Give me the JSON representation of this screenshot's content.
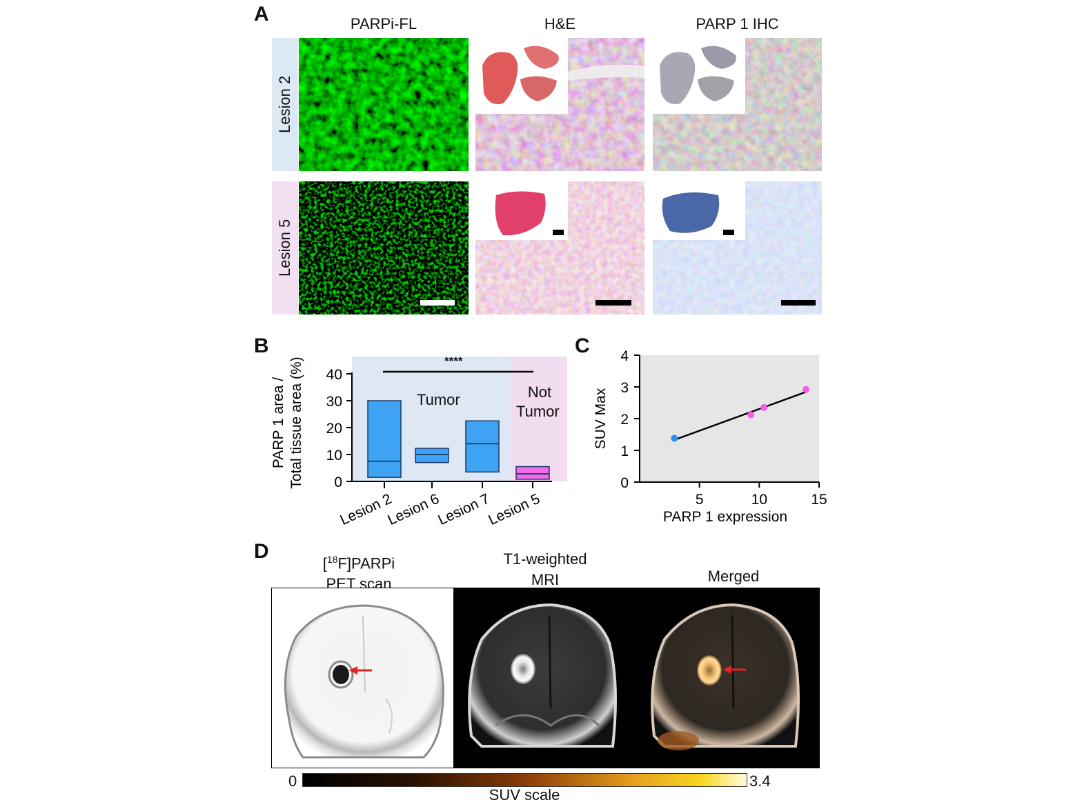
{
  "panelA": {
    "letter": "A",
    "columns": [
      "PARPi-FL",
      "H&E",
      "PARP 1 IHC"
    ],
    "rows": [
      "Lesion 2",
      "Lesion 5"
    ]
  },
  "panelB": {
    "letter": "B",
    "region_labels": {
      "tumor": "Tumor",
      "not_tumor_1": "Not",
      "not_tumor_2": "Tumor"
    },
    "significance": "****"
  },
  "panelC": {
    "letter": "C"
  },
  "panelD": {
    "letter": "D",
    "pet_title_sup": "18",
    "pet_title_pre": "[",
    "pet_title_post": "F]PARPi",
    "pet_title_line2": "PET scan",
    "mri_title_line1": "T1-weighted",
    "mri_title_line2": "MRI",
    "merged_title": "Merged",
    "colorbar": {
      "min_label": "0",
      "max_label": "3.4",
      "label": "SUV scale"
    }
  },
  "chart_data": [
    {
      "type": "box",
      "ylabel": [
        "PARP 1 area /",
        "Total tissue area (%)"
      ],
      "ylim": [
        0,
        40
      ],
      "yticks": [
        0,
        10,
        20,
        30,
        40
      ],
      "categories": [
        "Lesion 2",
        "Lesion 6",
        "Lesion 7",
        "Lesion 5"
      ],
      "boxes": [
        {
          "low": 1.5,
          "median": 7.5,
          "high": 30,
          "group": "Tumor",
          "color": "#3ea3f2"
        },
        {
          "low": 7,
          "median": 10,
          "high": 12.3,
          "group": "Tumor",
          "color": "#3ea3f2"
        },
        {
          "low": 3.5,
          "median": 14,
          "high": 22.5,
          "group": "Tumor",
          "color": "#3ea3f2"
        },
        {
          "low": 0.8,
          "median": 2.8,
          "high": 5.5,
          "group": "Not Tumor",
          "color": "#f06be8"
        }
      ],
      "region_colors": {
        "tumor": "#dde8f4",
        "not_tumor": "#f1dcf0"
      }
    },
    {
      "type": "scatter",
      "xlabel": "PARP 1 expression",
      "ylabel": "SUV Max",
      "xlim": [
        0,
        15
      ],
      "ylim": [
        0,
        4
      ],
      "xticks": [
        5,
        10,
        15
      ],
      "yticks": [
        0,
        1,
        2,
        3,
        4
      ],
      "grid": false,
      "background": "#e6e6e6",
      "points": [
        {
          "x": 2.9,
          "y": 1.38,
          "color": "#2a8ff0"
        },
        {
          "x": 9.3,
          "y": 2.12,
          "color": "#f25de9"
        },
        {
          "x": 10.4,
          "y": 2.35,
          "color": "#f25de9"
        },
        {
          "x": 13.9,
          "y": 2.92,
          "color": "#f25de9"
        }
      ],
      "fit_line": {
        "x1": 2.9,
        "y1": 1.33,
        "x2": 13.9,
        "y2": 2.84
      }
    }
  ]
}
